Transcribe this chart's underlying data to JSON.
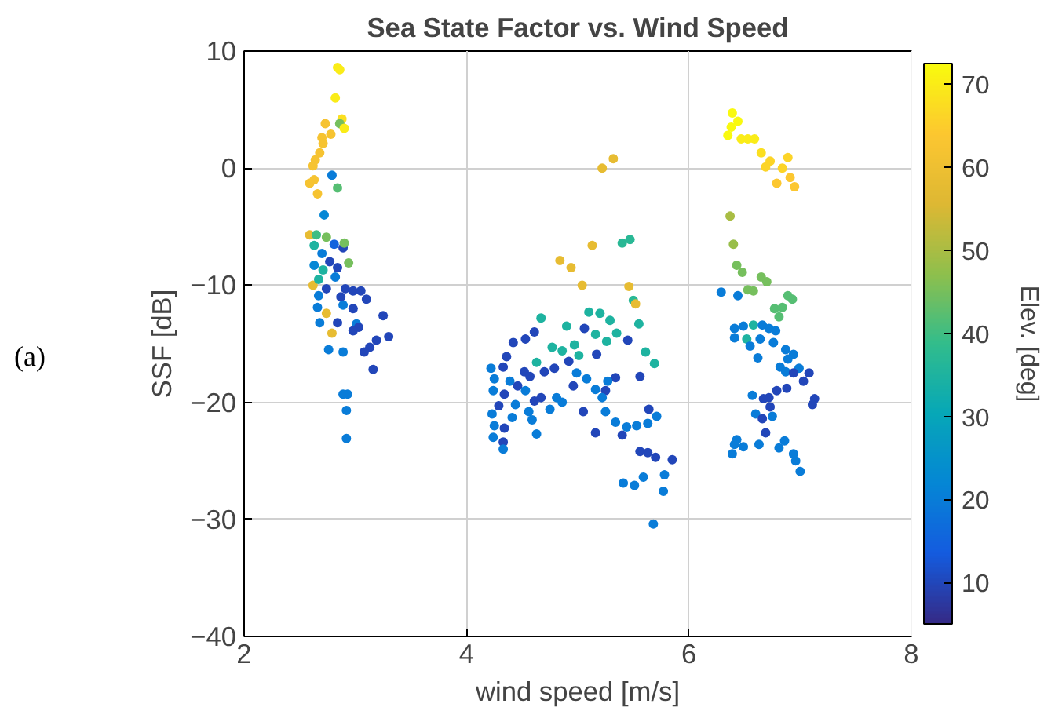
{
  "chart_data": {
    "type": "scatter",
    "title": "Sea State Factor vs. Wind Speed",
    "xlabel": "wind speed [m/s]",
    "ylabel": "SSF [dB]",
    "clabel": "Elev. [deg]",
    "annotations": [
      "(a)"
    ],
    "xlim": [
      2,
      8
    ],
    "xticks": [
      2,
      4,
      6,
      8
    ],
    "ylim": [
      -40,
      10
    ],
    "yticks": [
      -40,
      -30,
      -20,
      -10,
      0,
      10
    ],
    "clim": [
      5,
      72.5
    ],
    "cticks": [
      10,
      20,
      30,
      40,
      50,
      60,
      70
    ],
    "grid": true,
    "marker": "circle",
    "x": [
      2.84,
      2.86,
      2.82,
      2.88,
      2.86,
      2.9,
      2.73,
      2.78,
      2.7,
      2.71,
      2.68,
      2.64,
      2.62,
      2.79,
      2.63,
      2.59,
      2.84,
      2.66,
      2.72,
      2.59,
      2.65,
      2.74,
      2.81,
      2.89,
      2.9,
      2.63,
      2.7,
      2.94,
      2.77,
      2.63,
      2.71,
      2.84,
      2.62,
      2.67,
      2.82,
      2.74,
      2.91,
      2.98,
      3.05,
      3.1,
      2.87,
      2.67,
      2.98,
      2.89,
      2.74,
      2.66,
      3.25,
      2.84,
      2.68,
      3.01,
      3.03,
      2.79,
      2.98,
      3.3,
      3.19,
      3.13,
      3.08,
      2.76,
      2.89,
      3.16,
      2.93,
      2.89,
      2.92,
      2.92,
      5.32,
      5.22,
      5.13,
      5.4,
      5.47,
      4.84,
      4.94,
      5.04,
      5.46,
      5.5,
      5.52,
      4.67,
      5.1,
      5.2,
      5.29,
      4.9,
      5.06,
      5.55,
      4.61,
      4.53,
      4.42,
      5.35,
      5.45,
      5.26,
      5.16,
      4.77,
      4.86,
      4.97,
      5.61,
      4.36,
      5.01,
      5.17,
      4.92,
      4.63,
      5.69,
      4.22,
      4.33,
      4.79,
      4.7,
      4.52,
      4.57,
      4.99,
      5.08,
      5.34,
      5.27,
      5.56,
      4.25,
      4.39,
      4.46,
      4.96,
      5.16,
      5.25,
      4.24,
      4.53,
      4.34,
      5.22,
      4.67,
      4.61,
      4.81,
      4.86,
      4.29,
      4.44,
      4.56,
      4.75,
      5.05,
      5.25,
      5.64,
      4.23,
      4.41,
      4.59,
      5.34,
      5.44,
      5.53,
      5.63,
      5.71,
      4.25,
      4.34,
      5.16,
      5.4,
      4.63,
      4.24,
      4.33,
      4.33,
      5.56,
      5.63,
      5.7,
      5.85,
      5.78,
      5.59,
      5.41,
      5.51,
      5.77,
      5.68,
      6.39,
      6.44,
      6.38,
      6.35,
      6.47,
      6.53,
      6.59,
      6.65,
      6.89,
      6.73,
      6.69,
      6.84,
      6.91,
      6.79,
      6.95,
      6.37,
      6.4,
      6.43,
      6.48,
      6.65,
      6.7,
      6.53,
      6.58,
      6.29,
      6.44,
      6.89,
      6.93,
      6.77,
      6.84,
      6.81,
      6.41,
      6.49,
      6.58,
      6.66,
      6.72,
      6.78,
      6.41,
      6.52,
      6.64,
      6.76,
      6.55,
      6.87,
      6.94,
      6.62,
      6.89,
      6.82,
      6.87,
      6.99,
      6.94,
      7.08,
      7.03,
      6.88,
      6.79,
      6.72,
      6.57,
      6.67,
      7.13,
      7.11,
      6.73,
      6.6,
      6.66,
      6.75,
      6.69,
      6.43,
      6.49,
      6.41,
      6.63,
      6.86,
      6.81,
      6.39,
      6.94,
      6.96,
      7.0
    ],
    "values": [
      8.6,
      8.4,
      6.0,
      4.2,
      3.8,
      3.4,
      3.8,
      2.9,
      2.6,
      2.1,
      1.3,
      0.7,
      0.2,
      -0.6,
      -1.0,
      -1.3,
      -1.7,
      -2.2,
      -4.0,
      -5.7,
      -5.7,
      -5.9,
      -6.5,
      -6.8,
      -6.4,
      -6.6,
      -7.3,
      -8.1,
      -8.0,
      -8.3,
      -8.7,
      -8.5,
      -10.0,
      -9.5,
      -9.3,
      -10.3,
      -10.3,
      -10.5,
      -10.5,
      -11.2,
      -11.0,
      -10.9,
      -12.0,
      -11.7,
      -12.4,
      -11.9,
      -12.6,
      -13.2,
      -13.2,
      -13.3,
      -13.6,
      -14.1,
      -13.9,
      -14.4,
      -14.7,
      -15.3,
      -15.7,
      -15.5,
      -15.7,
      -17.2,
      -19.3,
      -19.3,
      -20.7,
      -23.1,
      0.8,
      0.0,
      -6.6,
      -6.4,
      -6.1,
      -7.9,
      -8.5,
      -10.0,
      -10.1,
      -11.3,
      -11.6,
      -12.8,
      -12.3,
      -12.4,
      -13.0,
      -13.5,
      -13.7,
      -13.3,
      -14.0,
      -14.6,
      -14.9,
      -14.1,
      -14.7,
      -14.8,
      -14.2,
      -15.3,
      -15.6,
      -15.1,
      -15.7,
      -16.1,
      -16.0,
      -15.9,
      -16.5,
      -16.6,
      -16.7,
      -17.1,
      -17.0,
      -17.1,
      -17.4,
      -17.4,
      -17.8,
      -17.5,
      -18.0,
      -17.9,
      -18.2,
      -17.8,
      -18.0,
      -18.2,
      -18.6,
      -18.6,
      -18.9,
      -19.0,
      -19.0,
      -19.0,
      -19.3,
      -19.6,
      -19.6,
      -19.9,
      -19.6,
      -20.0,
      -20.3,
      -20.2,
      -20.8,
      -20.6,
      -20.8,
      -20.8,
      -20.6,
      -21.0,
      -21.3,
      -21.5,
      -21.7,
      -22.1,
      -22.0,
      -21.8,
      -21.2,
      -22.0,
      -22.2,
      -22.6,
      -22.8,
      -22.7,
      -23.0,
      -23.4,
      -24.0,
      -24.2,
      -24.3,
      -24.7,
      -24.9,
      -26.2,
      -26.4,
      -26.9,
      -27.1,
      -27.6,
      -30.4,
      4.7,
      4.0,
      3.5,
      2.8,
      2.5,
      2.5,
      2.5,
      1.3,
      0.9,
      0.6,
      0.1,
      0.0,
      -0.8,
      -1.3,
      -1.6,
      -4.1,
      -6.5,
      -8.3,
      -8.9,
      -9.3,
      -9.7,
      -10.4,
      -10.5,
      -10.6,
      -10.9,
      -10.9,
      -11.2,
      -12.0,
      -11.9,
      -12.7,
      -13.7,
      -13.5,
      -13.4,
      -13.4,
      -13.7,
      -13.9,
      -14.5,
      -14.6,
      -14.6,
      -14.9,
      -15.2,
      -15.5,
      -15.9,
      -16.2,
      -16.3,
      -17.0,
      -17.4,
      -17.1,
      -17.5,
      -17.5,
      -18.2,
      -18.8,
      -19.0,
      -19.6,
      -19.4,
      -19.7,
      -19.7,
      -20.2,
      -20.4,
      -21.0,
      -21.4,
      -21.2,
      -22.6,
      -23.2,
      -23.8,
      -23.6,
      -23.6,
      -23.3,
      -23.9,
      -24.4,
      -24.4,
      -25.0,
      -25.9
    ],
    "cvalues": [
      70,
      70,
      70,
      68,
      45,
      70,
      62,
      62,
      62,
      62,
      62,
      62,
      62,
      20,
      62,
      62,
      42,
      62,
      22,
      58,
      40,
      45,
      15,
      10,
      45,
      35,
      20,
      45,
      10,
      22,
      35,
      10,
      58,
      35,
      20,
      10,
      10,
      10,
      10,
      10,
      10,
      20,
      10,
      20,
      58,
      20,
      10,
      10,
      20,
      20,
      10,
      58,
      10,
      10,
      10,
      10,
      10,
      20,
      20,
      10,
      20,
      20,
      20,
      20,
      58,
      58,
      58,
      37,
      37,
      58,
      58,
      58,
      58,
      37,
      58,
      35,
      35,
      35,
      35,
      35,
      10,
      35,
      10,
      10,
      10,
      35,
      10,
      35,
      35,
      35,
      35,
      35,
      35,
      10,
      35,
      10,
      10,
      35,
      35,
      20,
      10,
      10,
      10,
      10,
      10,
      20,
      20,
      10,
      20,
      10,
      20,
      20,
      10,
      10,
      20,
      10,
      20,
      20,
      10,
      20,
      10,
      10,
      20,
      20,
      10,
      20,
      20,
      20,
      10,
      20,
      10,
      20,
      20,
      20,
      20,
      20,
      20,
      20,
      20,
      20,
      10,
      10,
      10,
      20,
      20,
      10,
      20,
      10,
      10,
      10,
      10,
      20,
      20,
      20,
      20,
      20,
      20,
      72,
      72,
      72,
      72,
      70,
      70,
      70,
      68,
      66,
      66,
      66,
      66,
      64,
      64,
      64,
      50,
      48,
      45,
      45,
      45,
      45,
      45,
      45,
      20,
      20,
      42,
      42,
      42,
      42,
      42,
      20,
      20,
      35,
      20,
      20,
      20,
      20,
      35,
      20,
      20,
      20,
      20,
      20,
      20,
      20,
      20,
      20,
      20,
      10,
      10,
      10,
      10,
      10,
      10,
      20,
      10,
      10,
      10,
      10,
      20,
      10,
      20,
      10,
      20,
      20,
      20,
      20,
      20,
      20,
      20,
      20,
      20,
      20
    ]
  }
}
